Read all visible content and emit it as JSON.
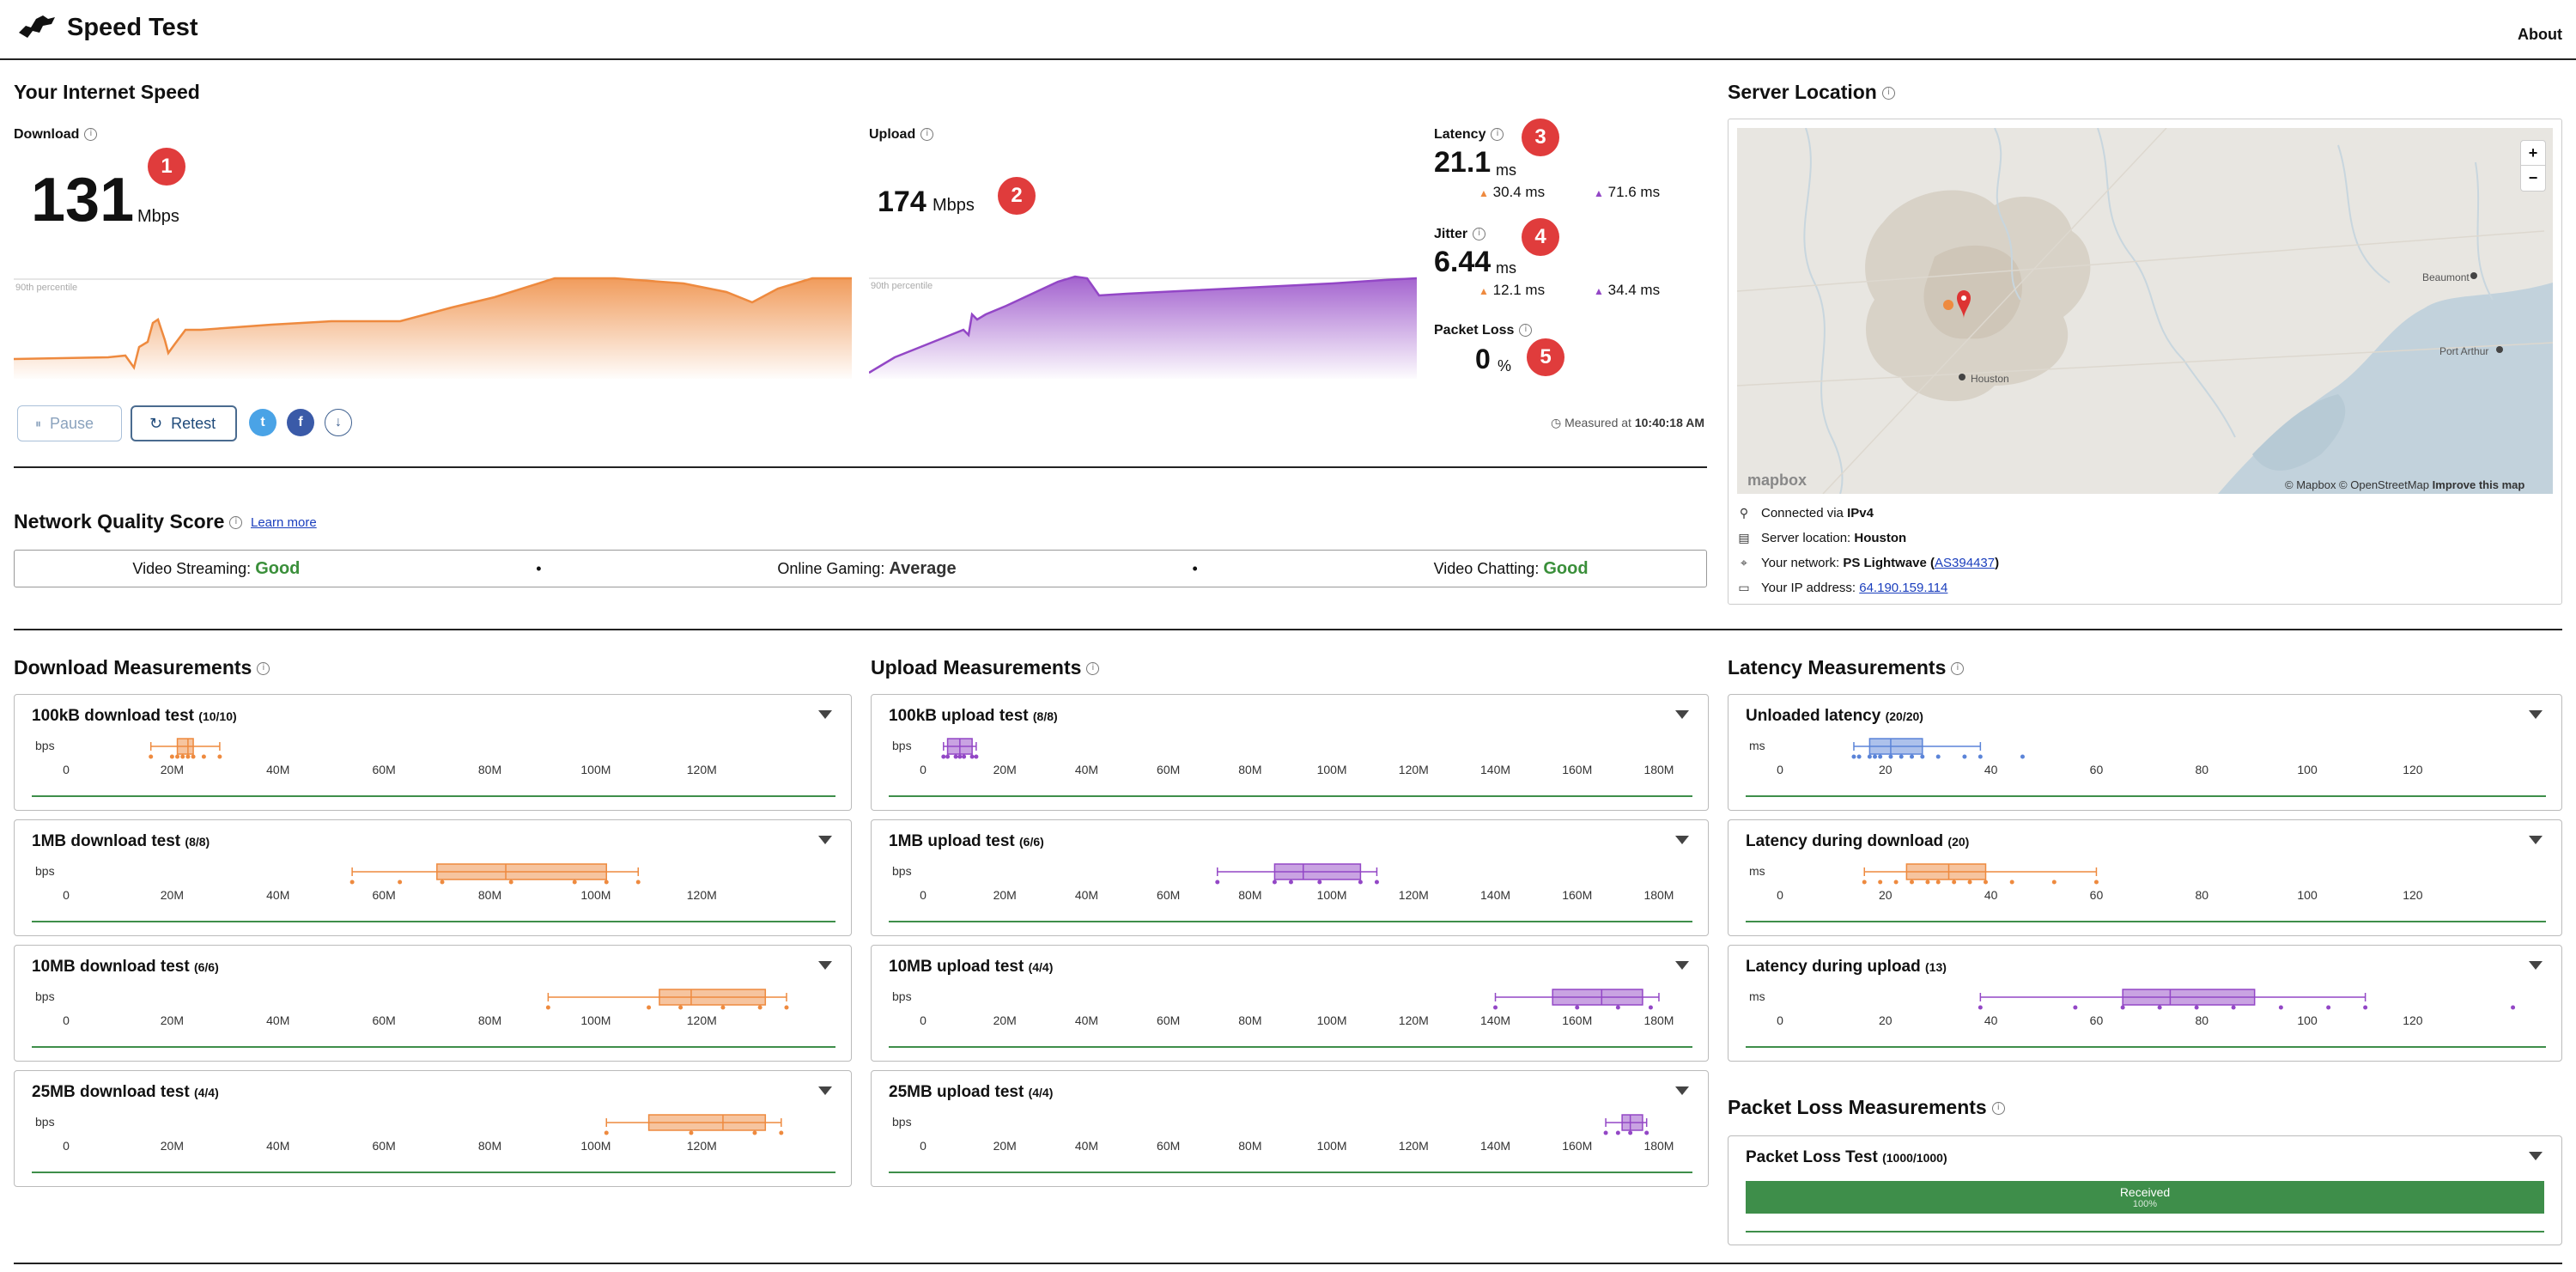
{
  "header": {
    "title": "Speed Test",
    "about": "About"
  },
  "speed": {
    "section_title": "Your Internet Speed",
    "download": {
      "label": "Download",
      "value": "131",
      "unit": "Mbps",
      "badge": "1",
      "percentile": "90th percentile"
    },
    "upload": {
      "label": "Upload",
      "value": "174",
      "unit": "Mbps",
      "badge": "2",
      "percentile": "90th percentile"
    },
    "latency": {
      "label": "Latency",
      "value": "21.1",
      "unit": "ms",
      "badge": "3",
      "down": "30.4 ms",
      "up": "71.6 ms"
    },
    "jitter": {
      "label": "Jitter",
      "value": "6.44",
      "unit": "ms",
      "badge": "4",
      "down": "12.1 ms",
      "up": "34.4 ms"
    },
    "packet_loss": {
      "label": "Packet Loss",
      "value": "0",
      "unit": "%",
      "badge": "5"
    },
    "pause": "Pause",
    "retest": "Retest",
    "measured_prefix": "Measured at",
    "measured_time": "10:40:18 AM"
  },
  "quality": {
    "title": "Network Quality Score",
    "learn_more": "Learn more",
    "items": [
      {
        "label": "Video Streaming:",
        "value": "Good"
      },
      {
        "label": "Online Gaming:",
        "value": "Average"
      },
      {
        "label": "Video Chatting:",
        "value": "Good"
      }
    ]
  },
  "server": {
    "title": "Server Location",
    "map_attribution": "© Mapbox © OpenStreetMap",
    "improve": "Improve this map",
    "mapbox": "mapbox",
    "places": [
      "Houston",
      "Beaumont",
      "Port Arthur"
    ],
    "connected_prefix": "Connected via",
    "connected_value": "IPv4",
    "server_prefix": "Server location:",
    "server_value": "Houston",
    "network_prefix": "Your network:",
    "network_value": "PS Lightwave (",
    "network_asn": "AS394437",
    "network_suffix": ")",
    "ip_prefix": "Your IP address:",
    "ip_value": "64.190.159.114",
    "zoom_in": "+",
    "zoom_out": "−"
  },
  "download_measurements": {
    "title": "Download Measurements",
    "axis_unit": "bps",
    "ticks": [
      "0",
      "20M",
      "40M",
      "60M",
      "80M",
      "100M",
      "120M"
    ],
    "tests": [
      {
        "name": "100kB download test",
        "count": "(10/10)",
        "min": 16,
        "q1": 21,
        "median": 23,
        "q3": 24,
        "max": 29,
        "points": [
          16,
          20,
          21,
          22,
          23,
          24,
          26,
          29
        ]
      },
      {
        "name": "1MB download test",
        "count": "(8/8)",
        "min": 54,
        "q1": 70,
        "median": 83,
        "q3": 102,
        "max": 108,
        "points": [
          54,
          63,
          71,
          84,
          96,
          102,
          108
        ]
      },
      {
        "name": "10MB download test",
        "count": "(6/6)",
        "min": 91,
        "q1": 112,
        "median": 118,
        "q3": 132,
        "max": 136,
        "points": [
          91,
          110,
          116,
          124,
          131,
          136
        ]
      },
      {
        "name": "25MB download test",
        "count": "(4/4)",
        "min": 102,
        "q1": 110,
        "median": 124,
        "q3": 132,
        "max": 135,
        "points": [
          102,
          118,
          130,
          135
        ]
      }
    ]
  },
  "upload_measurements": {
    "title": "Upload Measurements",
    "axis_unit": "bps",
    "ticks": [
      "0",
      "20M",
      "40M",
      "60M",
      "80M",
      "100M",
      "120M",
      "140M",
      "160M",
      "180M"
    ],
    "tests": [
      {
        "name": "100kB upload test",
        "count": "(8/8)",
        "min": 5,
        "q1": 6,
        "median": 9,
        "q3": 12,
        "max": 13,
        "points": [
          5,
          6,
          8,
          9,
          10,
          12,
          13
        ]
      },
      {
        "name": "1MB upload test",
        "count": "(6/6)",
        "min": 72,
        "q1": 86,
        "median": 93,
        "q3": 107,
        "max": 111,
        "points": [
          72,
          86,
          90,
          97,
          107,
          111
        ]
      },
      {
        "name": "10MB upload test",
        "count": "(4/4)",
        "min": 140,
        "q1": 154,
        "median": 166,
        "q3": 176,
        "max": 180,
        "points": [
          140,
          160,
          170,
          178
        ]
      },
      {
        "name": "25MB upload test",
        "count": "(4/4)",
        "min": 167,
        "q1": 171,
        "median": 173,
        "q3": 176,
        "max": 177,
        "points": [
          167,
          170,
          173,
          177
        ]
      }
    ]
  },
  "latency_measurements": {
    "title": "Latency Measurements",
    "axis_unit": "ms",
    "ticks": [
      "0",
      "20",
      "40",
      "60",
      "80",
      "100",
      "120"
    ],
    "tests": [
      {
        "name": "Unloaded latency",
        "count": "(20/20)",
        "min": 14,
        "q1": 17,
        "median": 21,
        "q3": 27,
        "max": 38,
        "points": [
          14,
          15,
          17,
          18,
          19,
          21,
          23,
          25,
          27,
          30,
          35,
          38,
          46
        ],
        "color": "#5b84d8"
      },
      {
        "name": "Latency during download",
        "count": "(20)",
        "min": 16,
        "q1": 24,
        "median": 32,
        "q3": 39,
        "max": 60,
        "points": [
          16,
          19,
          22,
          25,
          28,
          30,
          33,
          36,
          39,
          44,
          52,
          60
        ],
        "color": "#ee8a3f"
      },
      {
        "name": "Latency during upload",
        "count": "(13)",
        "min": 38,
        "q1": 65,
        "median": 74,
        "q3": 90,
        "max": 111,
        "points": [
          38,
          56,
          65,
          72,
          79,
          86,
          95,
          104,
          111,
          139
        ],
        "color": "#9347c6"
      }
    ]
  },
  "packet_loss_measurements": {
    "title": "Packet Loss Measurements",
    "test_name": "Packet Loss Test",
    "count": "(1000/1000)",
    "received_label": "Received",
    "received_pct": "100%",
    "received_fraction": 1.0
  },
  "colors": {
    "download": "#ee8a3f",
    "upload": "#9347c6",
    "latency": "#5b84d8",
    "good": "#3a8f3a",
    "badge": "#e03c3c"
  }
}
